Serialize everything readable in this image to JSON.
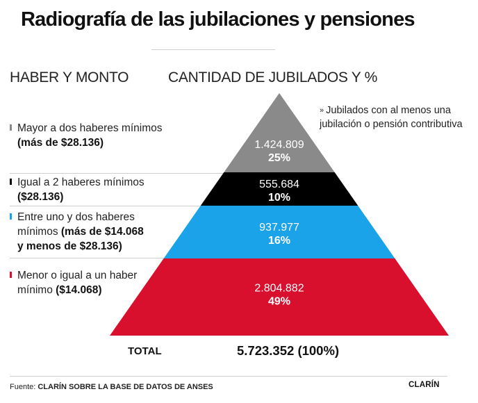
{
  "title": "Radiografía de las jubilaciones y pensiones",
  "columns": {
    "left": "HABER Y MONTO",
    "right": "CANTIDAD DE JUBILADOS Y %"
  },
  "note": "Jubilados con al menos una jubilación o pensión contributiva",
  "rows": [
    {
      "line1": "Mayor a dos haberes mínimos",
      "line1_bold": "",
      "line2_bold": "(más de $28.136)",
      "line2": "",
      "line3_bold": "",
      "color": "#8a8a8a"
    },
    {
      "line1": "Igual a 2 haberes mínimos",
      "line1_bold": "",
      "line2_bold": "($28.136)",
      "line2": "",
      "line3_bold": "",
      "color": "#000000"
    },
    {
      "line1": "Entre uno y dos haberes",
      "line1_bold": "",
      "line2": "mínimos ",
      "line2_bold": "(más de $14.068",
      "line3_bold": "y menos de $28.136)",
      "color": "#1aa3e8"
    },
    {
      "line1": "Menor o igual a un haber",
      "line1_bold": "",
      "line2": "mínimo ",
      "line2_bold": "($14.068)",
      "line3_bold": "",
      "color": "#d8102e"
    }
  ],
  "chart_data": {
    "type": "pyramid",
    "title": "Radiografía de las jubilaciones y pensiones",
    "categories": [
      "Mayor a dos haberes mínimos (más de $28.136)",
      "Igual a 2 haberes mínimos ($28.136)",
      "Entre uno y dos haberes mínimos (más de $14.068 y menos de $28.136)",
      "Menor o igual a un haber mínimo ($14.068)"
    ],
    "values": [
      1424809,
      555684,
      937977,
      2804882
    ],
    "value_labels": [
      "1.424.809",
      "555.684",
      "937.977",
      "2.804.882"
    ],
    "percent_labels": [
      "25%",
      "10%",
      "16%",
      "49%"
    ],
    "colors": [
      "#8a8a8a",
      "#000000",
      "#1aa3e8",
      "#d8102e"
    ],
    "text_colors": [
      "#ffffff",
      "#ffffff",
      "#ffffff",
      "#ffffff"
    ]
  },
  "total": {
    "label": "TOTAL",
    "value": "5.723.352 (100%)"
  },
  "source": {
    "prefix": "Fuente: ",
    "text": "CLARÍN SOBRE LA BASE DE DATOS DE ANSES"
  },
  "brand": "CLARÍN"
}
